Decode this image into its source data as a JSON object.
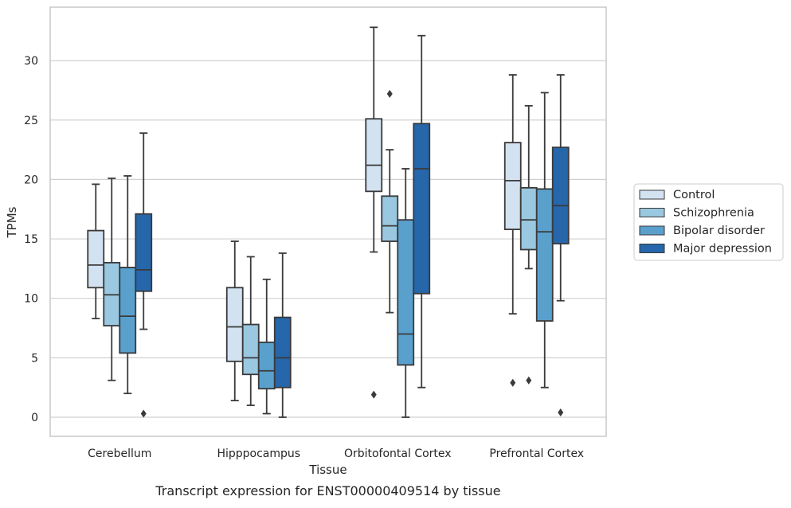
{
  "chart_data": {
    "type": "box",
    "xlabel": "Tissue",
    "ylabel": "TPMs",
    "caption": "Transcript expression for ENST00000409514 by tissue",
    "ylim": [
      -1.6,
      34.0
    ],
    "yticks": [
      0,
      5,
      10,
      15,
      20,
      25,
      30
    ],
    "categories": [
      "Cerebellum",
      "Hipppocampus",
      "Orbitofontal Cortex",
      "Prefrontal Cortex"
    ],
    "legend_position": "right",
    "grid": "horizontal",
    "series": [
      {
        "name": "Control",
        "color": "#d2e2f1",
        "boxes": [
          {
            "whislo": 8.3,
            "q1": 10.9,
            "med": 12.8,
            "q3": 15.7,
            "whishi": 19.6,
            "fliers": []
          },
          {
            "whislo": 1.4,
            "q1": 4.7,
            "med": 7.6,
            "q3": 10.9,
            "whishi": 14.8,
            "fliers": []
          },
          {
            "whislo": 13.9,
            "q1": 19.0,
            "med": 21.2,
            "q3": 25.1,
            "whishi": 32.8,
            "fliers": [
              1.9
            ]
          },
          {
            "whislo": 8.7,
            "q1": 15.8,
            "med": 19.9,
            "q3": 23.1,
            "whishi": 28.8,
            "fliers": [
              2.9
            ]
          }
        ]
      },
      {
        "name": "Schizophrenia",
        "color": "#9ac8e0",
        "boxes": [
          {
            "whislo": 3.1,
            "q1": 7.7,
            "med": 10.3,
            "q3": 13.0,
            "whishi": 20.1,
            "fliers": []
          },
          {
            "whislo": 1.0,
            "q1": 3.6,
            "med": 5.0,
            "q3": 7.8,
            "whishi": 13.5,
            "fliers": []
          },
          {
            "whislo": 8.8,
            "q1": 14.8,
            "med": 16.1,
            "q3": 18.6,
            "whishi": 22.5,
            "fliers": [
              27.2
            ]
          },
          {
            "whislo": 12.5,
            "q1": 14.1,
            "med": 16.6,
            "q3": 19.3,
            "whishi": 26.2,
            "fliers": [
              3.1
            ]
          }
        ]
      },
      {
        "name": "Bipolar disorder",
        "color": "#5aa0cd",
        "boxes": [
          {
            "whislo": 2.0,
            "q1": 5.4,
            "med": 8.5,
            "q3": 12.6,
            "whishi": 20.3,
            "fliers": []
          },
          {
            "whislo": 0.3,
            "q1": 2.4,
            "med": 3.9,
            "q3": 6.3,
            "whishi": 11.6,
            "fliers": []
          },
          {
            "whislo": 0.0,
            "q1": 4.4,
            "med": 7.0,
            "q3": 16.6,
            "whishi": 20.9,
            "fliers": []
          },
          {
            "whislo": 2.5,
            "q1": 8.1,
            "med": 15.6,
            "q3": 19.2,
            "whishi": 27.3,
            "fliers": []
          }
        ]
      },
      {
        "name": "Major depression",
        "color": "#2666ab",
        "boxes": [
          {
            "whislo": 7.4,
            "q1": 10.6,
            "med": 12.4,
            "q3": 17.1,
            "whishi": 23.9,
            "fliers": [
              0.3
            ]
          },
          {
            "whislo": 0.0,
            "q1": 2.5,
            "med": 5.0,
            "q3": 8.4,
            "whishi": 13.8,
            "fliers": []
          },
          {
            "whislo": 2.5,
            "q1": 10.4,
            "med": 20.9,
            "q3": 24.7,
            "whishi": 32.1,
            "fliers": []
          },
          {
            "whislo": 9.8,
            "q1": 14.6,
            "med": 17.8,
            "q3": 22.7,
            "whishi": 28.8,
            "fliers": [
              0.4
            ]
          }
        ]
      }
    ]
  }
}
